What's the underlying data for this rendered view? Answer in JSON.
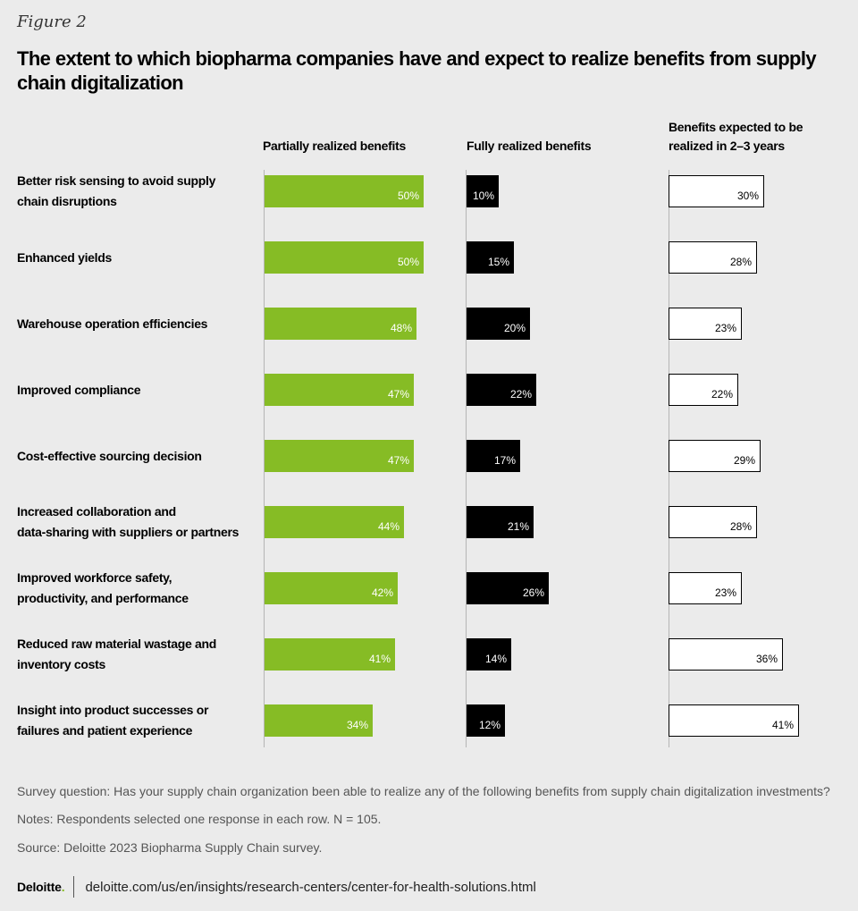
{
  "figure_label": "Figure 2",
  "title": "The extent to which biopharma companies have and expect to realize benefits from supply chain digitalization",
  "chart_data": {
    "type": "bar",
    "orientation": "horizontal",
    "title": "The extent to which biopharma companies have and expect to realize benefits from supply chain digitalization",
    "categories": [
      "Better risk sensing to avoid supply chain disruptions",
      "Enhanced yields",
      "Warehouse operation efficiencies",
      "Improved compliance",
      "Cost-effective sourcing decision",
      "Increased collaboration and data-sharing with suppliers or partners",
      "Improved workforce safety, productivity, and performance",
      "Reduced raw material wastage and inventory costs",
      "Insight into product successes or failures and patient experience"
    ],
    "series": [
      {
        "name": "Partially realized benefits",
        "color": "#86bc25",
        "values": [
          50,
          50,
          48,
          47,
          47,
          44,
          42,
          41,
          34
        ]
      },
      {
        "name": "Fully realized benefits",
        "color": "#000000",
        "values": [
          10,
          15,
          20,
          22,
          17,
          21,
          26,
          14,
          12
        ]
      },
      {
        "name": "Benefits expected to be realized in 2–3 years",
        "color": "#ffffff",
        "values": [
          30,
          28,
          23,
          22,
          29,
          28,
          23,
          36,
          41
        ]
      }
    ],
    "value_suffix": "%",
    "grid": false
  },
  "notes": {
    "survey": "Survey question: Has your supply chain organization been able to realize any of the following benefits from supply chain digitalization investments?",
    "respondents": "Notes: Respondents selected one response in each row. N = 105.",
    "source": "Source: Deloitte 2023 Biopharma Supply Chain survey."
  },
  "footer": {
    "logo": "Deloitte",
    "logo_dot": ".",
    "url": "deloitte.com/us/en/insights/research-centers/center-for-health-solutions.html"
  }
}
